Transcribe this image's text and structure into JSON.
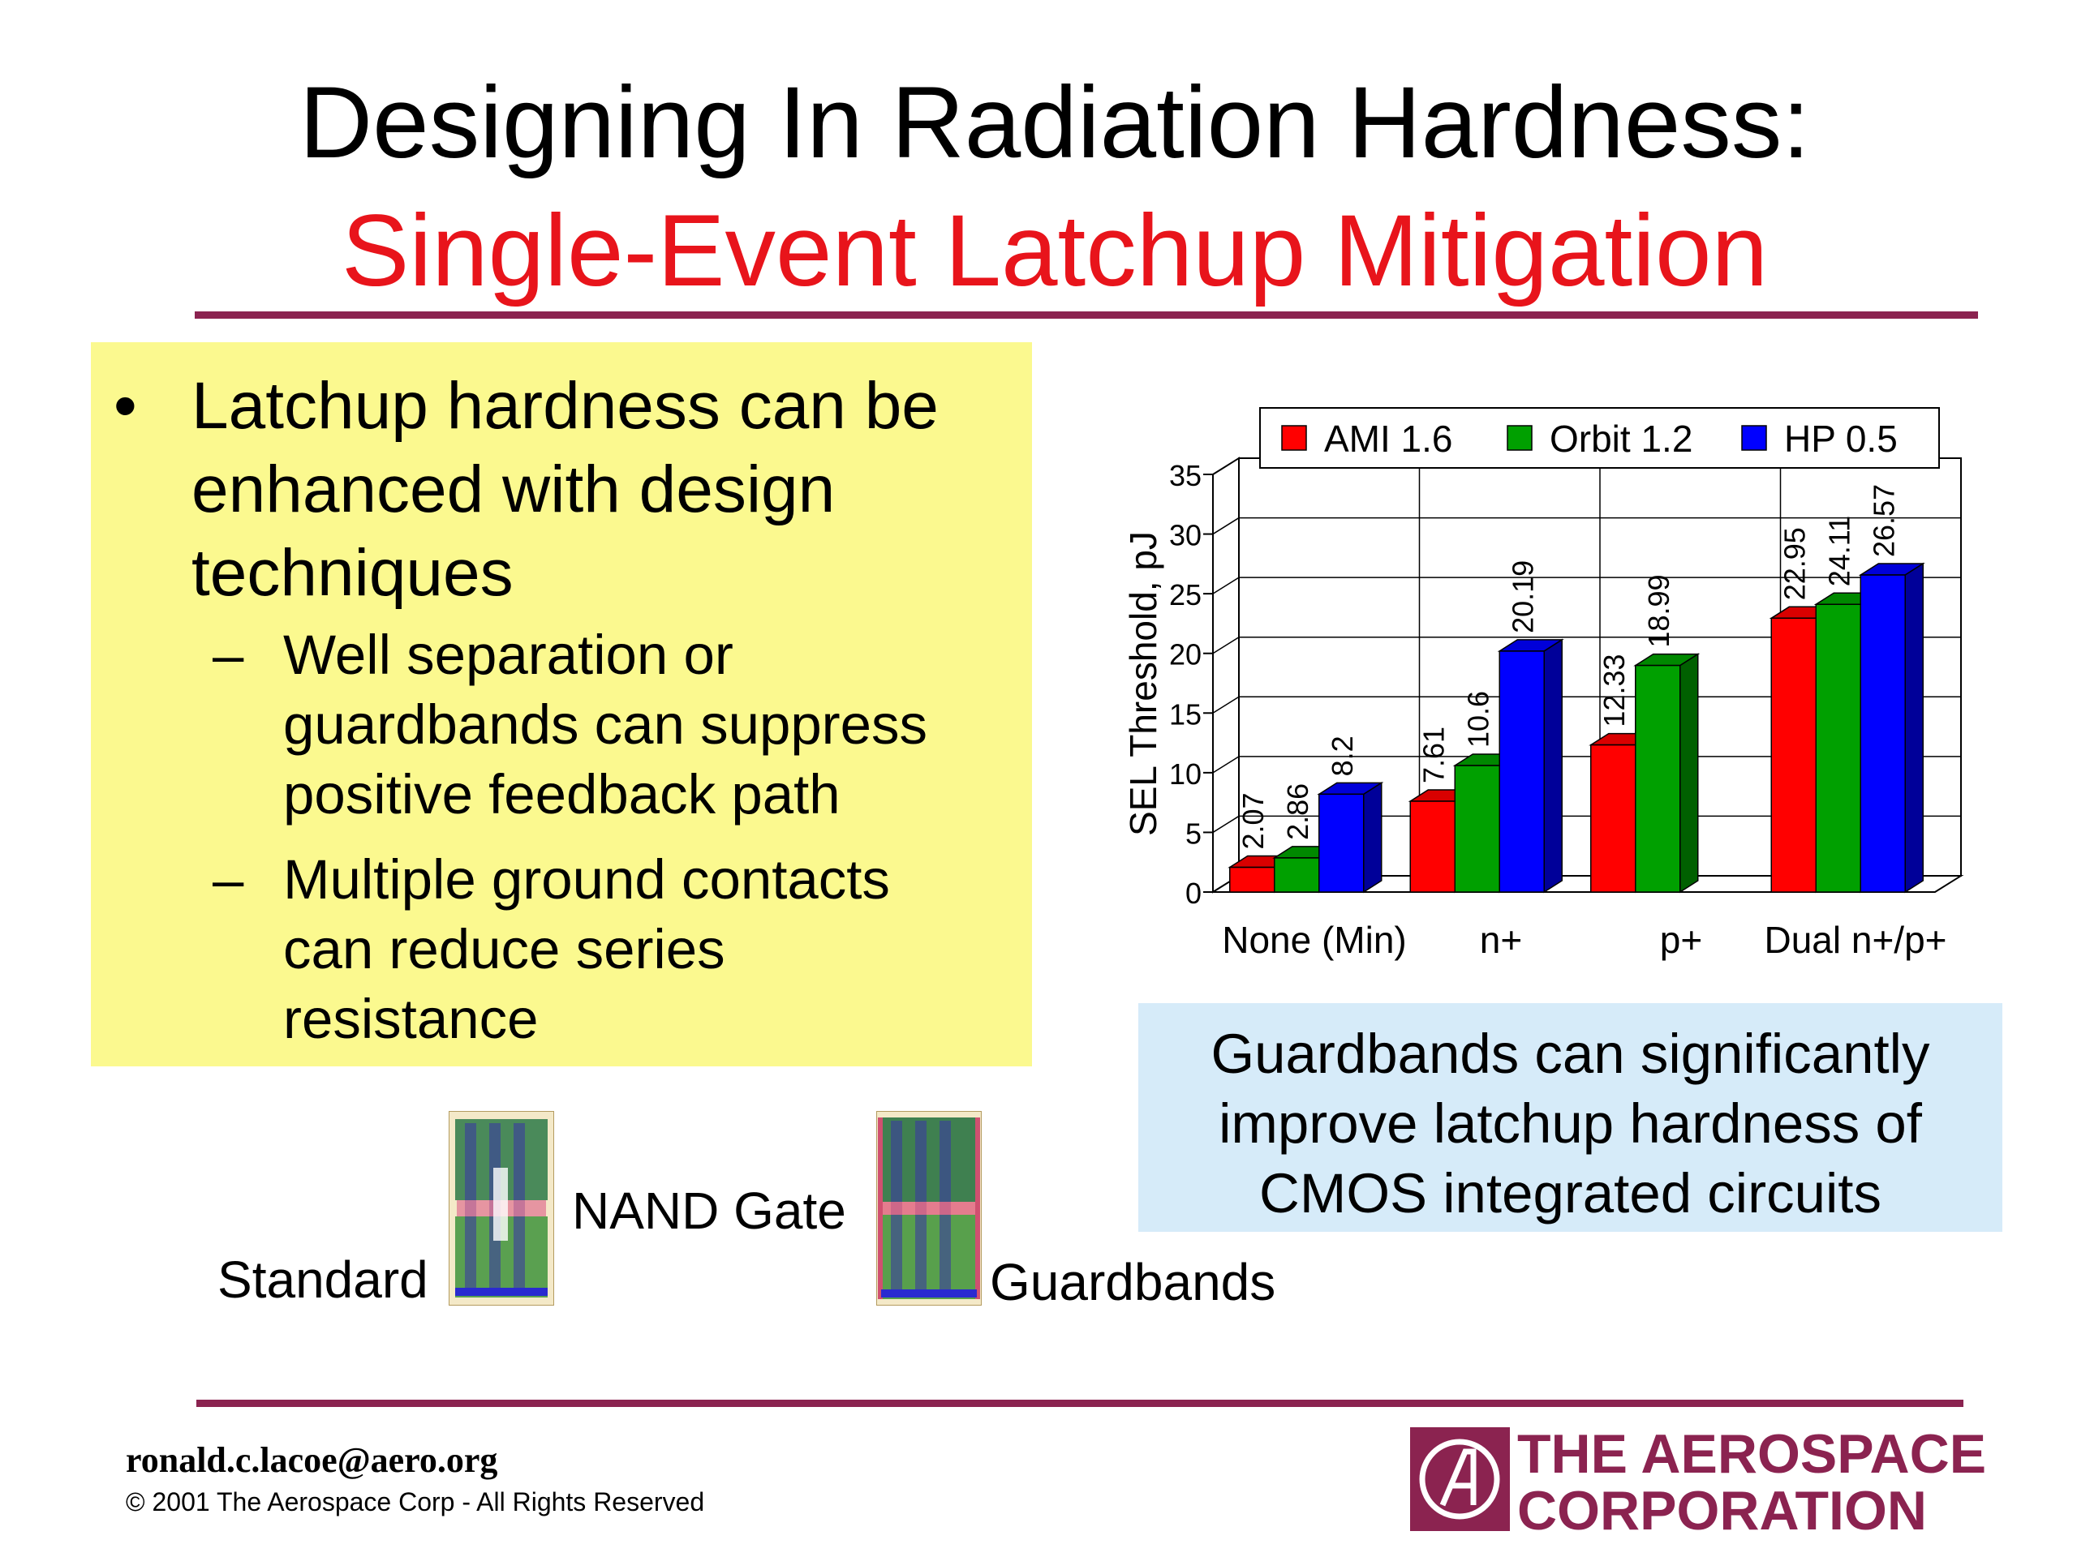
{
  "title": "Designing In Radiation Hardness:",
  "subtitle": "Single-Event Latchup Mitigation",
  "bullets": {
    "main": [
      "Latchup hardness can be",
      "enhanced with design",
      "techniques"
    ],
    "sub1": [
      "Well separation or",
      "guardbands can suppress",
      "positive feedback path"
    ],
    "sub2": [
      "Multiple ground contacts",
      "can reduce series",
      "resistance"
    ],
    "bullet_glyph": "•",
    "dash_glyph": "–"
  },
  "chart_data": {
    "type": "bar",
    "ylabel": "SEL Threshold, pJ",
    "ylim": [
      0,
      35
    ],
    "yticks": [
      "0",
      "5",
      "10",
      "15",
      "20",
      "25",
      "30",
      "35"
    ],
    "categories": [
      "None (Min)",
      "n+",
      "p+",
      "Dual n+/p+"
    ],
    "series": [
      {
        "name": "AMI 1.6",
        "color": "#ff0000",
        "values": [
          2.07,
          7.61,
          12.33,
          22.95
        ],
        "labels": [
          "2.07",
          "7.61",
          "12.33",
          "22.95"
        ]
      },
      {
        "name": "Orbit 1.2",
        "color": "#00a000",
        "values": [
          2.86,
          10.6,
          18.99,
          24.11
        ],
        "labels": [
          "2.86",
          "10.6",
          "18.99",
          "24.11"
        ]
      },
      {
        "name": "HP 0.5",
        "color": "#0000ff",
        "values": [
          8.2,
          20.19,
          null,
          26.57
        ],
        "labels": [
          "8.2",
          "20.19",
          "",
          "26.57"
        ]
      }
    ],
    "legend": "top",
    "grid": true
  },
  "callout": [
    "Guardbands can significantly",
    "improve latchup hardness of",
    "CMOS integrated circuits"
  ],
  "figure_labels": {
    "standard": "Standard",
    "nand": "NAND Gate",
    "guardbands": "Guardbands"
  },
  "footer": {
    "email": "ronald.c.lacoe@aero.org",
    "copyright": "© 2001 The Aerospace Corp - All Rights Reserved",
    "logo_line1": "THE AEROSPACE",
    "logo_line2": "CORPORATION"
  }
}
